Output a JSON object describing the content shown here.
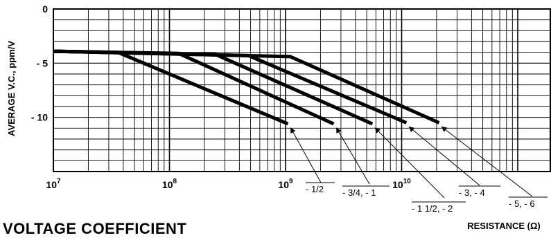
{
  "chart_data": {
    "type": "line",
    "title": "VOLTAGE COEFFICIENT",
    "xlabel": "RESISTANCE (Ω)",
    "ylabel": "AVERAGE V.C., ppm/V",
    "x_scale": "log",
    "xlim": [
      10000000.0,
      100000000000.0
    ],
    "ylim": [
      -15,
      0
    ],
    "grid": true,
    "x_tick_labels": [
      {
        "base": "10",
        "exp": "7"
      },
      {
        "base": "10",
        "exp": "8"
      },
      {
        "base": "10",
        "exp": "9"
      },
      {
        "base": "10",
        "exp": "10"
      }
    ],
    "y_tick_labels": [
      "0",
      "- 5",
      "- 10"
    ],
    "y_tick_values": [
      0,
      -5,
      -10
    ],
    "series": [
      {
        "name": "- 1/2",
        "x": [
          10000000.0,
          36000000.0,
          1050000000.0
        ],
        "y": [
          -3.9,
          -4.0,
          -10.6
        ]
      },
      {
        "name": "- 3/4, - 1",
        "x": [
          10000000.0,
          120000000.0,
          2600000000.0
        ],
        "y": [
          -3.9,
          -4.1,
          -10.6
        ]
      },
      {
        "name": "- 1 1/2, - 2",
        "x": [
          10000000.0,
          250000000.0,
          5600000000.0
        ],
        "y": [
          -3.9,
          -4.2,
          -10.6
        ]
      },
      {
        "name": "- 3, - 4",
        "x": [
          10000000.0,
          480000000.0,
          11000000000.0
        ],
        "y": [
          -3.9,
          -4.3,
          -10.5
        ]
      },
      {
        "name": "- 5, - 6",
        "x": [
          10000000.0,
          1100000000.0,
          21000000000.0
        ],
        "y": [
          -3.9,
          -4.4,
          -10.5
        ]
      }
    ]
  }
}
